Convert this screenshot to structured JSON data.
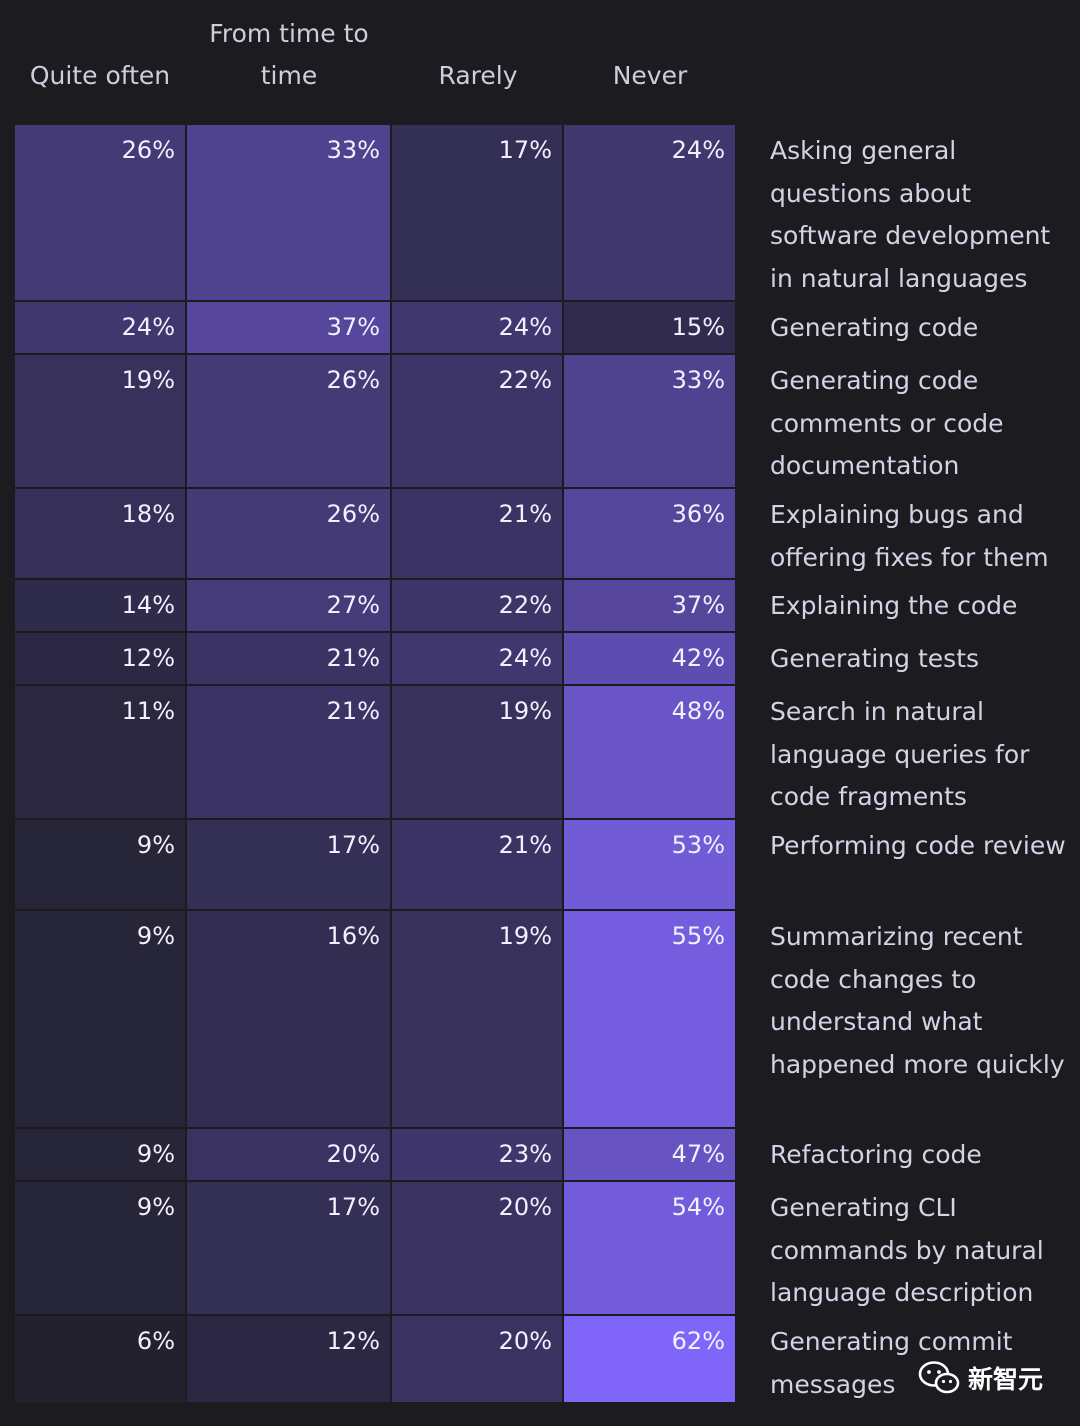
{
  "chart_data": {
    "type": "heatmap",
    "columns": [
      "Quite often",
      "From time to time",
      "Rarely",
      "Never"
    ],
    "rows": [
      {
        "label": "Asking general questions about software development in natural languages",
        "values": [
          26,
          33,
          17,
          24
        ]
      },
      {
        "label": "Generating code",
        "values": [
          24,
          37,
          24,
          15
        ]
      },
      {
        "label": "Generating code comments or code documentation",
        "values": [
          19,
          26,
          22,
          33
        ]
      },
      {
        "label": "Explaining bugs and offering fixes for them",
        "values": [
          18,
          26,
          21,
          36
        ]
      },
      {
        "label": "Explaining the code",
        "values": [
          14,
          27,
          22,
          37
        ]
      },
      {
        "label": "Generating tests",
        "values": [
          12,
          21,
          24,
          42
        ]
      },
      {
        "label": "Search in natural language queries for code fragments",
        "values": [
          11,
          21,
          19,
          48
        ]
      },
      {
        "label": "Performing code review",
        "values": [
          9,
          17,
          21,
          53
        ]
      },
      {
        "label": "Summarizing recent code changes to understand what happened more quickly",
        "values": [
          9,
          16,
          19,
          55
        ]
      },
      {
        "label": "Refactoring code",
        "values": [
          9,
          20,
          23,
          47
        ]
      },
      {
        "label": "Generating CLI commands by natural language description",
        "values": [
          9,
          17,
          20,
          54
        ]
      },
      {
        "label": "Generating commit messages",
        "values": [
          6,
          12,
          20,
          62
        ]
      }
    ],
    "value_suffix": "%",
    "color_low": "#22212d",
    "color_high": "#8066f8"
  },
  "watermark": {
    "text": "新智元",
    "icon": "wechat-icon"
  }
}
